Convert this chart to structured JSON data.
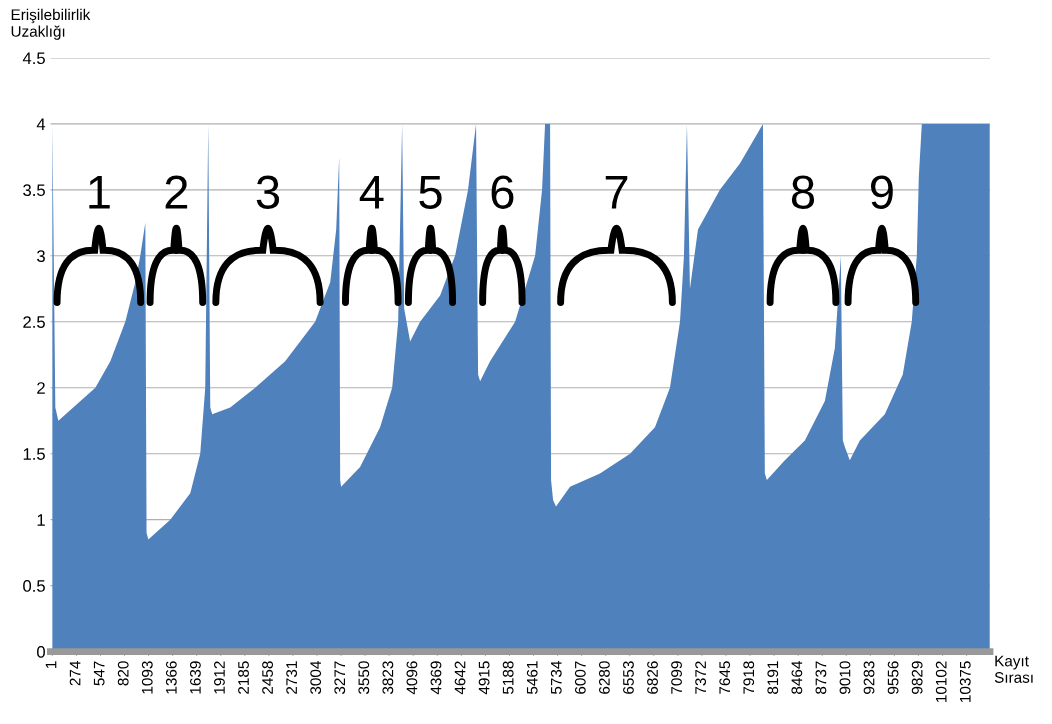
{
  "chart_data": {
    "type": "area",
    "ylabel": "Erişilebilirlik\nUzaklığı",
    "xlabel": "Kayıt\nSırası",
    "x": [
      1,
      35,
      69,
      489,
      659,
      829,
      942,
      999,
      1056,
      1070,
      1090,
      1339,
      1566,
      1679,
      1736,
      1770,
      1793,
      1815,
      2019,
      2303,
      2643,
      2983,
      3154,
      3222,
      3256,
      3267,
      3278,
      3493,
      3720,
      3857,
      3925,
      3970,
      3993,
      4061,
      4174,
      4401,
      4571,
      4718,
      4809,
      4832,
      4855,
      4968,
      5252,
      5479,
      5558,
      5592,
      5649,
      5660,
      5683,
      5716,
      5875,
      6215,
      6556,
      6839,
      7009,
      7123,
      7168,
      7202,
      7236,
      7327,
      7576,
      7803,
      8064,
      8086,
      8109,
      8313,
      8540,
      8767,
      8880,
      8948,
      8971,
      8994,
      9050,
      9164,
      9447,
      9651,
      9753,
      9810,
      9833,
      9867,
      10638
    ],
    "series": [
      {
        "color": "#4f81bd",
        "values": [
          4,
          1.85,
          1.75,
          2.0,
          2.2,
          2.5,
          2.8,
          3.0,
          3.25,
          0.9,
          0.85,
          1.0,
          1.2,
          1.5,
          2.0,
          4.0,
          1.85,
          1.8,
          1.85,
          2.0,
          2.2,
          2.5,
          2.8,
          3.2,
          3.75,
          1.3,
          1.25,
          1.4,
          1.7,
          2.0,
          2.5,
          4.0,
          2.6,
          2.35,
          2.5,
          2.7,
          3.0,
          3.5,
          4.0,
          2.1,
          2.05,
          2.2,
          2.5,
          3.0,
          3.5,
          4.0,
          4.0,
          1.3,
          1.15,
          1.1,
          1.25,
          1.35,
          1.5,
          1.7,
          2.0,
          2.5,
          3.0,
          4.0,
          2.75,
          3.2,
          3.5,
          3.7,
          4.0,
          1.35,
          1.3,
          1.45,
          1.6,
          1.9,
          2.3,
          3.0,
          1.6,
          1.55,
          1.45,
          1.6,
          1.8,
          2.1,
          2.5,
          3.0,
          3.6,
          4.0,
          4.0
        ]
      }
    ],
    "xlim": [
      -20,
      10640
    ],
    "xticks": [
      1,
      274,
      547,
      820,
      1093,
      1366,
      1639,
      1912,
      2185,
      2458,
      2731,
      3004,
      3277,
      3550,
      3823,
      4096,
      4369,
      4642,
      4915,
      5188,
      5461,
      5734,
      6007,
      6280,
      6553,
      6826,
      7099,
      7372,
      7645,
      7918,
      8191,
      8464,
      8737,
      9010,
      9283,
      9556,
      9829,
      10102,
      10375
    ],
    "ylim": [
      0,
      4.5
    ],
    "yticks": [
      0,
      0.5,
      1,
      1.5,
      2,
      2.5,
      3,
      3.5,
      4,
      4.5
    ],
    "grid": "y",
    "legend": false,
    "annotations": [
      "1",
      "2",
      "3",
      "4",
      "5",
      "6",
      "7",
      "8",
      "9"
    ]
  }
}
